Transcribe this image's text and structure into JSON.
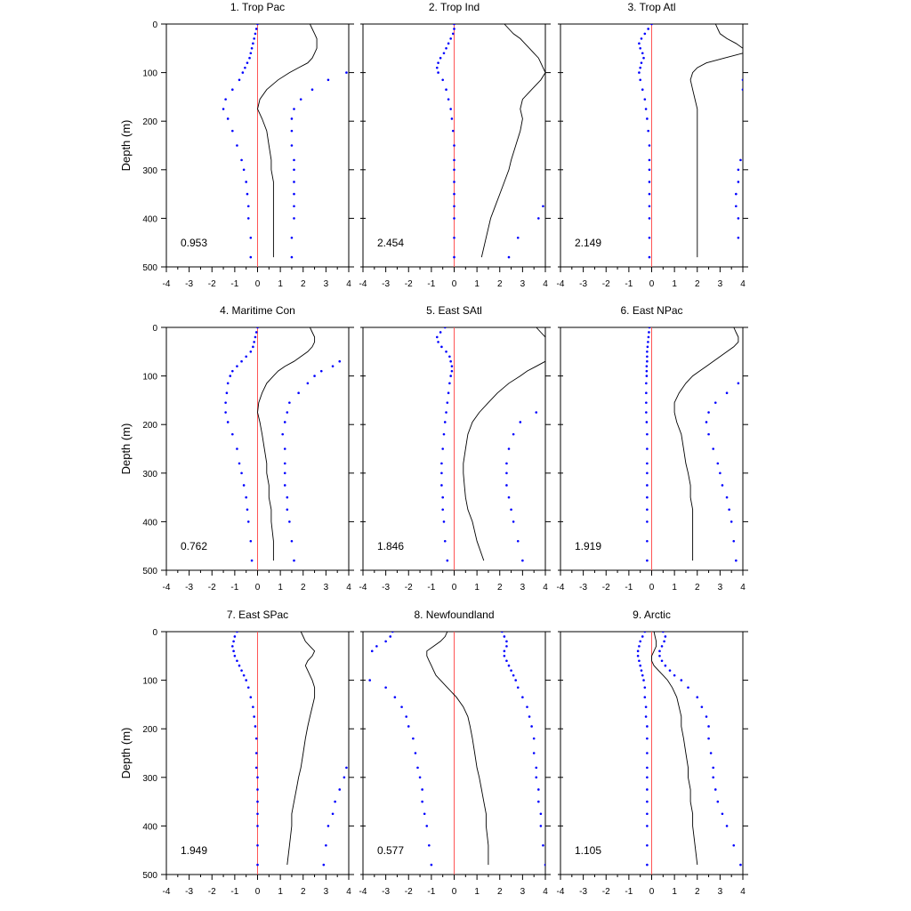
{
  "colors": {
    "mean_line": "#000000",
    "bound_dots": "#0000ff",
    "zero_line": "#ff5555",
    "frame": "#000000"
  },
  "chart_data": {
    "type": "line",
    "layout": "3x3 grid of profile panels, depth increasing downward",
    "ylabel": "Depth (m)",
    "xlim": [
      -4,
      4
    ],
    "ylim": [
      0,
      500
    ],
    "x_ticks": [
      -4,
      -3,
      -2,
      -1,
      0,
      1,
      2,
      3,
      4
    ],
    "y_ticks": [
      0,
      100,
      200,
      300,
      400,
      500
    ],
    "grid": false,
    "depths": [
      0,
      10,
      20,
      30,
      40,
      50,
      60,
      70,
      80,
      90,
      100,
      115,
      135,
      155,
      175,
      195,
      220,
      250,
      280,
      300,
      325,
      350,
      375,
      400,
      440,
      480
    ],
    "panels": [
      {
        "title": "1. Trop Pac",
        "stat": "0.953",
        "mean": [
          2.3,
          2.4,
          2.5,
          2.6,
          2.6,
          2.6,
          2.5,
          2.4,
          2.2,
          1.8,
          1.4,
          0.9,
          0.4,
          0.1,
          0.0,
          0.2,
          0.4,
          0.5,
          0.6,
          0.6,
          0.7,
          0.7,
          0.7,
          0.7,
          0.7,
          0.7
        ],
        "lower": [
          0.0,
          -0.05,
          -0.1,
          -0.15,
          -0.2,
          -0.25,
          -0.3,
          -0.35,
          -0.45,
          -0.55,
          -0.65,
          -0.8,
          -1.1,
          -1.4,
          -1.5,
          -1.3,
          -1.1,
          -0.9,
          -0.7,
          -0.6,
          -0.5,
          -0.45,
          -0.4,
          -0.4,
          -0.3,
          -0.3
        ],
        "upper": [
          null,
          null,
          null,
          null,
          null,
          null,
          null,
          null,
          null,
          null,
          3.9,
          3.1,
          2.4,
          1.9,
          1.6,
          1.5,
          1.5,
          1.5,
          1.6,
          1.6,
          1.6,
          1.6,
          1.6,
          1.6,
          1.5,
          1.5
        ]
      },
      {
        "title": "2. Trop Ind",
        "stat": "2.454",
        "mean": [
          2.2,
          2.4,
          2.6,
          2.9,
          3.1,
          3.3,
          3.5,
          3.7,
          3.8,
          3.9,
          4.0,
          3.8,
          3.4,
          3.0,
          2.9,
          3.0,
          2.9,
          2.7,
          2.5,
          2.4,
          2.2,
          2.0,
          1.8,
          1.6,
          1.4,
          1.2
        ],
        "lower": [
          0.0,
          0.0,
          -0.05,
          -0.15,
          -0.25,
          -0.35,
          -0.45,
          -0.6,
          -0.7,
          -0.75,
          -0.7,
          -0.5,
          -0.35,
          -0.25,
          -0.15,
          -0.1,
          -0.05,
          0.0,
          0.0,
          0.0,
          0.0,
          0.0,
          0.0,
          0.0,
          0.0,
          0.0
        ],
        "upper": [
          null,
          null,
          null,
          null,
          null,
          null,
          null,
          null,
          null,
          null,
          null,
          null,
          null,
          null,
          null,
          null,
          null,
          null,
          null,
          null,
          null,
          null,
          3.9,
          3.7,
          2.8,
          2.4
        ]
      },
      {
        "title": "3. Trop Atl",
        "stat": "2.149",
        "mean": [
          2.8,
          2.9,
          3.0,
          3.3,
          3.7,
          4.0,
          4.0,
          3.2,
          2.4,
          2.0,
          1.8,
          1.7,
          1.8,
          1.9,
          2.0,
          2.0,
          2.0,
          2.0,
          2.0,
          2.0,
          2.0,
          2.0,
          2.0,
          2.0,
          2.0,
          2.0
        ],
        "lower": [
          0.0,
          -0.15,
          -0.3,
          -0.45,
          -0.55,
          -0.5,
          -0.4,
          -0.35,
          -0.45,
          -0.5,
          -0.55,
          -0.5,
          -0.4,
          -0.3,
          -0.25,
          -0.2,
          -0.15,
          -0.1,
          -0.1,
          -0.1,
          -0.1,
          -0.1,
          -0.1,
          -0.1,
          -0.1,
          -0.1
        ],
        "upper": [
          null,
          null,
          null,
          null,
          null,
          null,
          null,
          null,
          null,
          null,
          null,
          4.0,
          4.0,
          null,
          null,
          null,
          null,
          null,
          3.9,
          3.8,
          3.8,
          3.7,
          3.7,
          3.8,
          3.8,
          null
        ]
      },
      {
        "title": "4. Maritime Con",
        "stat": "0.762",
        "mean": [
          2.3,
          2.4,
          2.5,
          2.5,
          2.4,
          2.2,
          1.9,
          1.6,
          1.2,
          0.9,
          0.7,
          0.4,
          0.2,
          0.05,
          0.0,
          0.1,
          0.2,
          0.3,
          0.4,
          0.4,
          0.5,
          0.5,
          0.6,
          0.6,
          0.7,
          0.7
        ],
        "lower": [
          0.0,
          -0.05,
          -0.1,
          -0.15,
          -0.2,
          -0.3,
          -0.5,
          -0.7,
          -0.9,
          -1.1,
          -1.2,
          -1.3,
          -1.35,
          -1.4,
          -1.4,
          -1.3,
          -1.1,
          -0.9,
          -0.8,
          -0.7,
          -0.6,
          -0.5,
          -0.45,
          -0.4,
          -0.3,
          -0.25
        ],
        "upper": [
          null,
          null,
          null,
          null,
          null,
          null,
          null,
          3.6,
          3.3,
          2.8,
          2.5,
          2.2,
          1.8,
          1.4,
          1.3,
          1.2,
          1.1,
          1.2,
          1.2,
          1.2,
          1.2,
          1.3,
          1.3,
          1.4,
          1.5,
          1.6
        ]
      },
      {
        "title": "5. East SAtl",
        "stat": "1.846",
        "mean": [
          3.6,
          3.8,
          4.0,
          null,
          null,
          null,
          null,
          4.0,
          3.6,
          3.2,
          2.9,
          2.4,
          1.9,
          1.5,
          1.1,
          0.8,
          0.6,
          0.5,
          0.4,
          0.4,
          0.45,
          0.5,
          0.6,
          0.8,
          1.0,
          1.3
        ],
        "lower": [
          -0.4,
          -0.6,
          -0.75,
          -0.7,
          -0.55,
          -0.35,
          -0.2,
          -0.15,
          -0.1,
          -0.1,
          -0.15,
          -0.2,
          -0.25,
          -0.3,
          -0.35,
          -0.4,
          -0.45,
          -0.5,
          -0.55,
          -0.55,
          -0.55,
          -0.5,
          -0.5,
          -0.45,
          -0.4,
          -0.3
        ],
        "upper": [
          null,
          null,
          null,
          null,
          null,
          null,
          null,
          null,
          null,
          null,
          null,
          null,
          null,
          null,
          3.6,
          2.9,
          2.6,
          2.4,
          2.3,
          2.3,
          2.3,
          2.4,
          2.5,
          2.6,
          2.8,
          3.0
        ]
      },
      {
        "title": "6. East NPac",
        "stat": "1.919",
        "mean": [
          3.6,
          3.7,
          3.8,
          3.8,
          3.6,
          3.3,
          3.0,
          2.7,
          2.4,
          2.1,
          1.8,
          1.5,
          1.2,
          1.0,
          1.0,
          1.1,
          1.3,
          1.4,
          1.5,
          1.6,
          1.7,
          1.7,
          1.8,
          1.8,
          1.8,
          1.8
        ],
        "lower": [
          -0.1,
          -0.12,
          -0.14,
          -0.16,
          -0.18,
          -0.2,
          -0.2,
          -0.2,
          -0.22,
          -0.22,
          -0.22,
          -0.24,
          -0.24,
          -0.24,
          -0.24,
          -0.22,
          -0.2,
          -0.2,
          -0.2,
          -0.2,
          -0.2,
          -0.2,
          -0.2,
          -0.2,
          -0.2,
          -0.2
        ],
        "upper": [
          null,
          null,
          null,
          null,
          null,
          null,
          null,
          null,
          null,
          null,
          null,
          3.8,
          3.3,
          2.8,
          2.5,
          2.4,
          2.5,
          2.7,
          2.9,
          3.0,
          3.1,
          3.3,
          3.4,
          3.5,
          3.6,
          3.7
        ]
      },
      {
        "title": "7. East SPac",
        "stat": "1.949",
        "mean": [
          1.9,
          2.0,
          2.1,
          2.3,
          2.5,
          2.4,
          2.2,
          2.1,
          2.2,
          2.3,
          2.4,
          2.5,
          2.5,
          2.4,
          2.3,
          2.2,
          2.1,
          2.0,
          1.9,
          1.8,
          1.7,
          1.6,
          1.5,
          1.5,
          1.4,
          1.3
        ],
        "lower": [
          -0.9,
          -1.0,
          -1.05,
          -1.1,
          -1.05,
          -1.0,
          -0.9,
          -0.8,
          -0.7,
          -0.6,
          -0.5,
          -0.4,
          -0.3,
          -0.2,
          -0.15,
          -0.1,
          -0.05,
          -0.05,
          -0.05,
          0.0,
          0.0,
          0.0,
          0.0,
          0.0,
          0.0,
          0.0
        ],
        "upper": [
          null,
          null,
          null,
          null,
          null,
          null,
          null,
          null,
          null,
          null,
          null,
          null,
          null,
          null,
          null,
          null,
          null,
          null,
          3.9,
          3.8,
          3.6,
          3.4,
          3.3,
          3.1,
          3.0,
          2.9
        ]
      },
      {
        "title": "8. Newfoundland",
        "stat": "0.577",
        "mean": [
          -0.3,
          -0.4,
          -0.6,
          -0.9,
          -1.2,
          -1.2,
          -1.1,
          -1.0,
          -0.9,
          -0.8,
          -0.6,
          -0.3,
          0.1,
          0.4,
          0.6,
          0.7,
          0.8,
          0.9,
          1.0,
          1.1,
          1.2,
          1.3,
          1.4,
          1.4,
          1.5,
          1.5
        ],
        "lower": [
          -2.7,
          -2.8,
          -3.0,
          -3.4,
          -3.6,
          null,
          null,
          null,
          null,
          null,
          -3.7,
          -3.0,
          -2.6,
          -2.3,
          -2.1,
          -2.0,
          -1.8,
          -1.7,
          -1.6,
          -1.5,
          -1.4,
          -1.4,
          -1.3,
          -1.2,
          -1.1,
          -1.0
        ],
        "upper": [
          2.1,
          2.2,
          2.3,
          2.3,
          2.2,
          2.2,
          2.3,
          2.4,
          2.5,
          2.6,
          2.7,
          2.8,
          3.0,
          3.2,
          3.3,
          3.4,
          3.5,
          3.5,
          3.6,
          3.6,
          3.7,
          3.7,
          3.8,
          3.8,
          3.9,
          4.0
        ]
      },
      {
        "title": "9. Arctic",
        "stat": "1.105",
        "mean": [
          0.1,
          0.15,
          0.2,
          0.2,
          0.1,
          0.0,
          0.0,
          0.1,
          0.3,
          0.5,
          0.7,
          0.9,
          1.1,
          1.2,
          1.3,
          1.3,
          1.4,
          1.5,
          1.6,
          1.6,
          1.7,
          1.7,
          1.8,
          1.8,
          1.9,
          2.0
        ],
        "lower": [
          -0.3,
          -0.4,
          -0.5,
          -0.55,
          -0.6,
          -0.6,
          -0.55,
          -0.5,
          -0.45,
          -0.4,
          -0.35,
          -0.3,
          -0.3,
          -0.25,
          -0.25,
          -0.2,
          -0.2,
          -0.2,
          -0.2,
          -0.2,
          -0.2,
          -0.2,
          -0.2,
          -0.2,
          -0.2,
          -0.2
        ],
        "upper": [
          0.5,
          0.6,
          0.55,
          0.45,
          0.35,
          0.35,
          0.45,
          0.6,
          0.8,
          1.0,
          1.3,
          1.6,
          2.0,
          2.2,
          2.4,
          2.5,
          2.5,
          2.6,
          2.7,
          2.7,
          2.8,
          2.9,
          3.1,
          3.3,
          3.6,
          3.9
        ]
      }
    ]
  }
}
